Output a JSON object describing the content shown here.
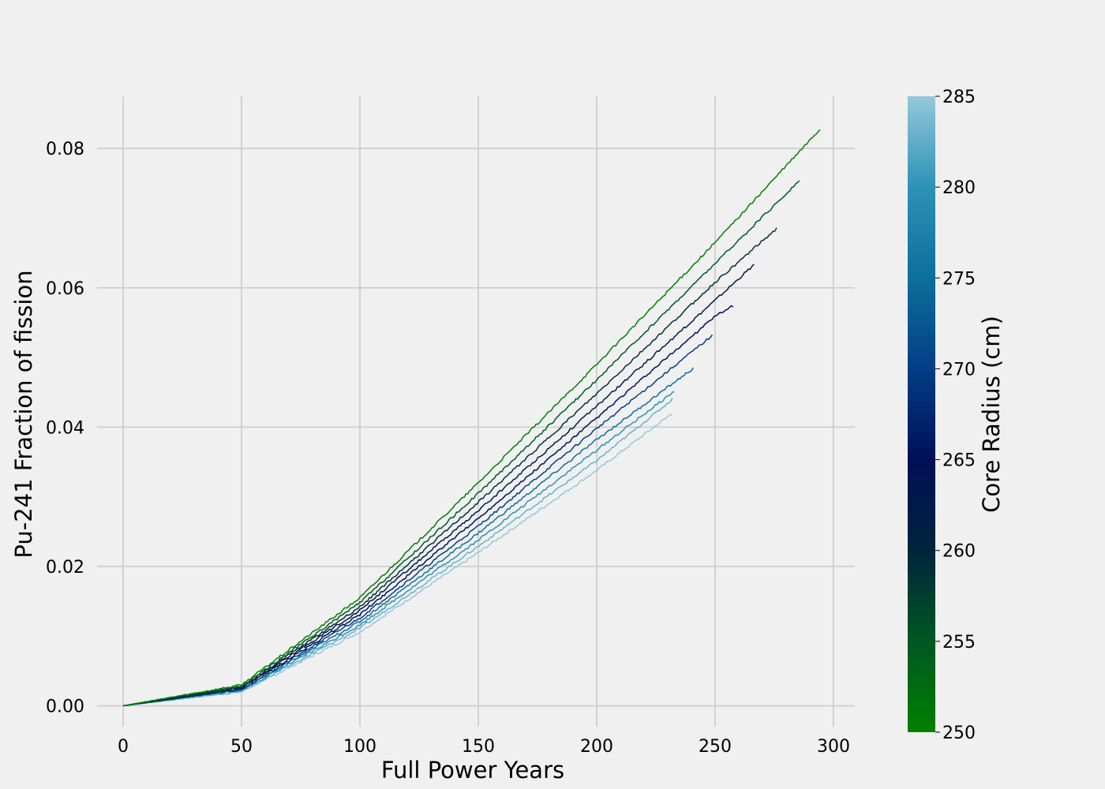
{
  "chart_data": {
    "type": "line",
    "title": "",
    "xlabel": "Full Power Years",
    "ylabel": "Pu-241 Fraction of fission",
    "xlim": [
      -11,
      309
    ],
    "ylim": [
      -0.003,
      0.0875
    ],
    "xticks": [
      0,
      50,
      100,
      150,
      200,
      250,
      300
    ],
    "yticks": [
      0.0,
      0.02,
      0.04,
      0.06,
      0.08
    ],
    "xtick_labels": [
      "0",
      "50",
      "100",
      "150",
      "200",
      "250",
      "300"
    ],
    "ytick_labels": [
      "0.00",
      "0.02",
      "0.04",
      "0.06",
      "0.08"
    ],
    "grid": true,
    "series": [
      {
        "core_radius": 250,
        "color": "#008000",
        "x": [
          0,
          50,
          100,
          150,
          200,
          250,
          295
        ],
        "y": [
          0.0,
          0.003,
          0.0155,
          0.032,
          0.049,
          0.0665,
          0.083
        ]
      },
      {
        "core_radius": 254,
        "color": "#005722",
        "x": [
          0,
          50,
          100,
          150,
          200,
          250,
          286
        ],
        "y": [
          0.0,
          0.0028,
          0.0148,
          0.0305,
          0.0468,
          0.0635,
          0.0755
        ]
      },
      {
        "core_radius": 258,
        "color": "#00303b",
        "x": [
          0,
          50,
          100,
          150,
          200,
          250,
          276
        ],
        "y": [
          0.0,
          0.0027,
          0.0142,
          0.0292,
          0.0448,
          0.0608,
          0.0685
        ]
      },
      {
        "core_radius": 262,
        "color": "#001a46",
        "x": [
          0,
          50,
          100,
          150,
          200,
          250,
          267
        ],
        "y": [
          0.0,
          0.0026,
          0.0137,
          0.028,
          0.043,
          0.0582,
          0.0635
        ]
      },
      {
        "core_radius": 266,
        "color": "#000f58",
        "x": [
          0,
          50,
          100,
          150,
          200,
          250,
          258
        ],
        "y": [
          0.0,
          0.0025,
          0.0131,
          0.0269,
          0.0413,
          0.0559,
          0.0575
        ]
      },
      {
        "core_radius": 270,
        "color": "#023e86",
        "x": [
          0,
          50,
          100,
          150,
          200,
          249
        ],
        "y": [
          0.0,
          0.0024,
          0.0126,
          0.0258,
          0.0398,
          0.0532
        ]
      },
      {
        "core_radius": 274,
        "color": "#0d6f9c",
        "x": [
          0,
          50,
          100,
          150,
          200,
          241
        ],
        "y": [
          0.0,
          0.0023,
          0.0121,
          0.0248,
          0.0382,
          0.0485
        ]
      },
      {
        "core_radius": 278,
        "color": "#2d92b6",
        "x": [
          0,
          50,
          100,
          150,
          200,
          233
        ],
        "y": [
          0.0,
          0.0022,
          0.0116,
          0.0238,
          0.0367,
          0.0452
        ]
      },
      {
        "core_radius": 282,
        "color": "#6bb1cc",
        "x": [
          0,
          50,
          100,
          150,
          200,
          232
        ],
        "y": [
          0.0,
          0.0021,
          0.0111,
          0.0229,
          0.0352,
          0.044
        ]
      },
      {
        "core_radius": 285,
        "color": "#95c8db",
        "x": [
          0,
          50,
          100,
          150,
          200,
          232
        ],
        "y": [
          0.0,
          0.002,
          0.0106,
          0.022,
          0.0338,
          0.042
        ]
      }
    ],
    "colorbar": {
      "label": "Core Radius (cm)",
      "range": [
        250,
        285
      ],
      "ticks": [
        250,
        255,
        260,
        265,
        270,
        275,
        280,
        285
      ],
      "tick_labels": [
        "250",
        "255",
        "260",
        "265",
        "270",
        "275",
        "280",
        "285"
      ],
      "colormap": [
        {
          "value": 250,
          "color": "#008000"
        },
        {
          "value": 255,
          "color": "#005722"
        },
        {
          "value": 260,
          "color": "#00243c"
        },
        {
          "value": 265,
          "color": "#000f58"
        },
        {
          "value": 270,
          "color": "#023e86"
        },
        {
          "value": 275,
          "color": "#0d6f9c"
        },
        {
          "value": 280,
          "color": "#2d92b6"
        },
        {
          "value": 285,
          "color": "#95c8db"
        }
      ]
    }
  }
}
